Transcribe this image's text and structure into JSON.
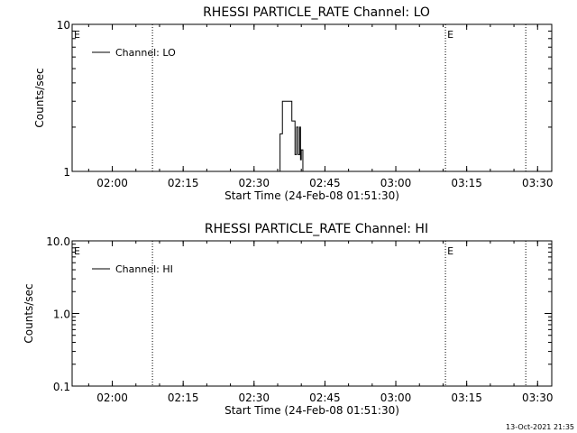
{
  "footer": {
    "timestamp": "13-Oct-2021 21:35"
  },
  "chart_data": [
    {
      "type": "line",
      "title": "RHESSI PARTICLE_RATE Channel: LO",
      "xlabel": "Start Time (24-Feb-08 01:51:30)",
      "ylabel": "Counts/sec",
      "x_ticks": [
        "02:00",
        "02:15",
        "02:30",
        "02:45",
        "03:00",
        "03:15",
        "03:30"
      ],
      "y_scale": "log",
      "ylim": [
        1,
        10
      ],
      "y_ticks": [
        "1",
        "10"
      ],
      "legend": {
        "position": "top-left",
        "entries": [
          "Channel: LO"
        ]
      },
      "grid": false,
      "markers": [
        {
          "time": "01:51:30",
          "label": "E"
        },
        {
          "time": "02:08:30",
          "label": ""
        },
        {
          "time": "03:10:30",
          "label": "E"
        },
        {
          "time": "03:27:30",
          "label": ""
        }
      ],
      "series": [
        {
          "name": "Channel: LO",
          "x": [
            "02:34:30",
            "02:35:30",
            "02:36:00",
            "02:37:30",
            "02:38:00",
            "02:38:30",
            "02:38:40",
            "02:39:00",
            "02:39:20",
            "02:39:40",
            "02:39:50",
            "02:40:00",
            "02:40:20"
          ],
          "y": [
            1,
            1.8,
            3.0,
            3.0,
            2.2,
            2.2,
            1.3,
            2.0,
            1.3,
            2.0,
            1.2,
            1.4,
            1
          ]
        }
      ]
    },
    {
      "type": "line",
      "title": "RHESSI PARTICLE_RATE Channel: HI",
      "xlabel": "Start Time (24-Feb-08 01:51:30)",
      "ylabel": "Counts/sec",
      "x_ticks": [
        "02:00",
        "02:15",
        "02:30",
        "02:45",
        "03:00",
        "03:15",
        "03:30"
      ],
      "y_scale": "log",
      "ylim": [
        0.1,
        10
      ],
      "y_ticks": [
        "0.1",
        "1.0",
        "10.0"
      ],
      "legend": {
        "position": "top-left",
        "entries": [
          "Channel: HI"
        ]
      },
      "grid": false,
      "markers": [
        {
          "time": "01:51:30",
          "label": "E"
        },
        {
          "time": "02:08:30",
          "label": ""
        },
        {
          "time": "03:10:30",
          "label": "E"
        },
        {
          "time": "03:27:30",
          "label": ""
        }
      ],
      "series": [
        {
          "name": "Channel: HI",
          "x": [],
          "y": []
        }
      ]
    }
  ]
}
